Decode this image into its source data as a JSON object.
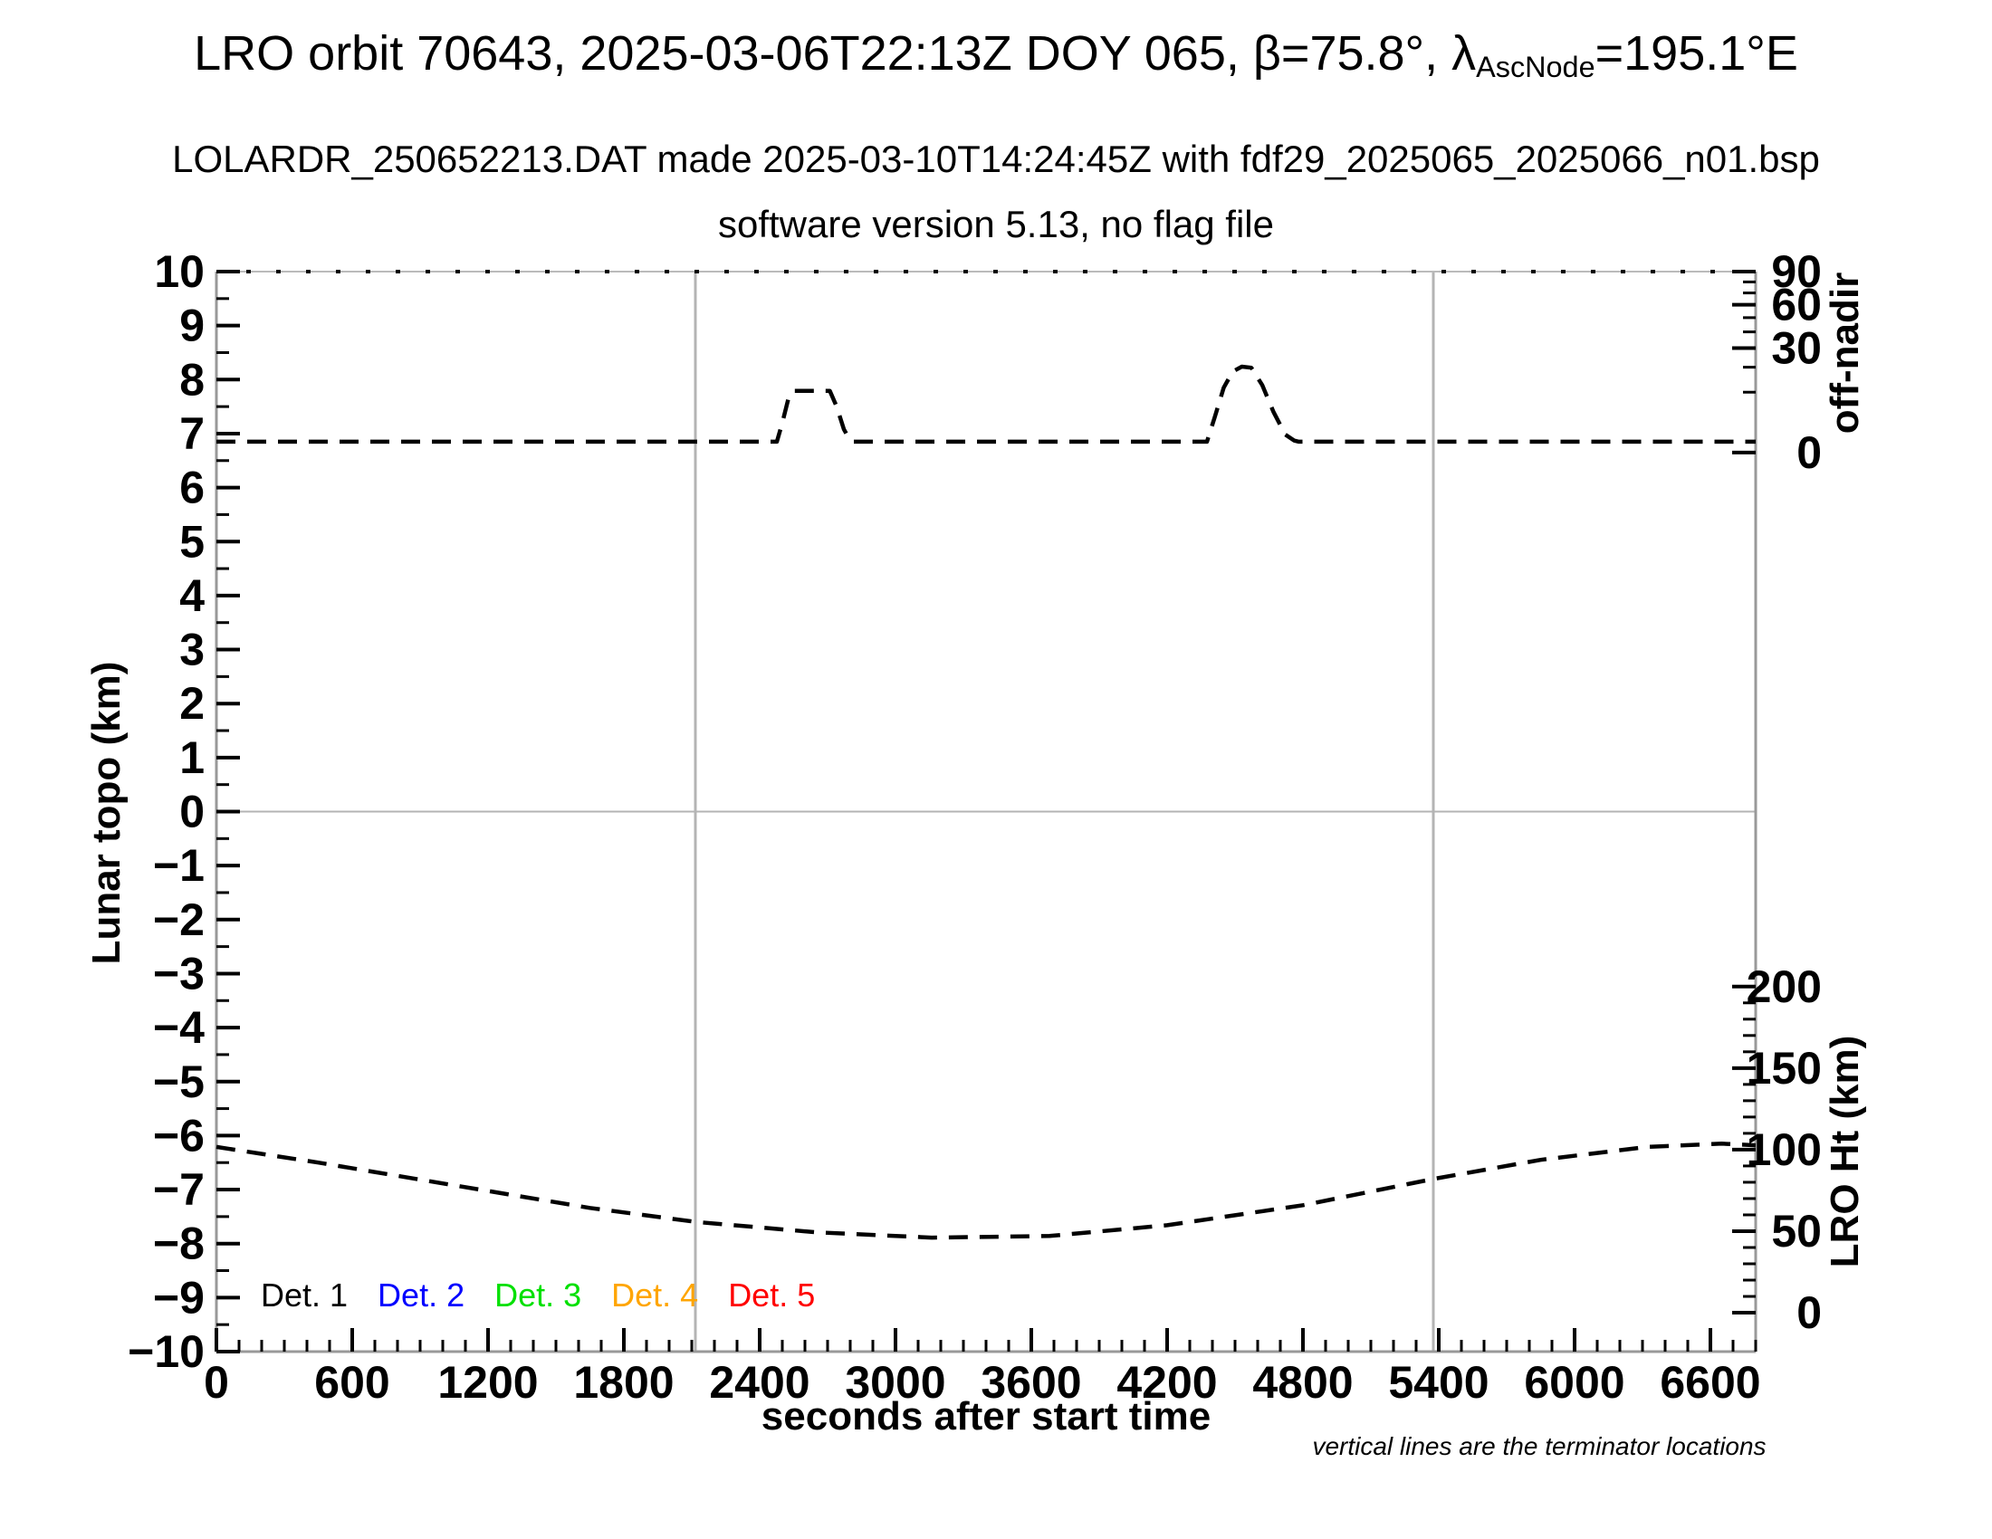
{
  "header": {
    "title_pre": "LRO orbit 70643, 2025-03-06T22:13Z DOY 065, β=75.8°, λ",
    "title_sub": "AscNode",
    "title_post": "=195.1°E",
    "subtitle": "LOLARDR_250652213.DAT made 2025-03-10T14:24:45Z with fdf29_2025065_2025066_n01.bsp",
    "subtitle2": "software version 5.13, no flag file"
  },
  "legend": {
    "items": [
      {
        "label": "Det. 1",
        "color": "#000000"
      },
      {
        "label": "Det. 2",
        "color": "#0000ff"
      },
      {
        "label": "Det. 3",
        "color": "#00e000"
      },
      {
        "label": "Det. 4",
        "color": "#ffa500"
      },
      {
        "label": "Det. 5",
        "color": "#ff0000"
      }
    ]
  },
  "footnote": "vertical lines are the terminator locations",
  "chart_data": {
    "type": "line",
    "x_axis": {
      "label": "seconds after start time",
      "min": 0,
      "max": 6800,
      "major_ticks": [
        0,
        600,
        1200,
        1800,
        2400,
        3000,
        3600,
        4200,
        4800,
        5400,
        6000,
        6600
      ],
      "major_tick_labels": [
        "0",
        "600",
        "1200",
        "1800",
        "2400",
        "3000",
        "3600",
        "4200",
        "4800",
        "5400",
        "6000",
        "6600"
      ],
      "minor_tick_step": 100
    },
    "y_left_axis": {
      "label": "Lunar topo (km)",
      "min": -10,
      "max": 10,
      "major_ticks": [
        10,
        9,
        8,
        7,
        6,
        5,
        4,
        3,
        2,
        1,
        0,
        -1,
        -2,
        -3,
        -4,
        -5,
        -6,
        -7,
        -8,
        -9,
        -10
      ],
      "major_tick_labels": [
        "10",
        "9",
        "8",
        "7",
        "6",
        "5",
        "4",
        "3",
        "2",
        "1",
        "0",
        "−1",
        "−2",
        "−3",
        "−4",
        "−5",
        "−6",
        "−7",
        "−8",
        "−9",
        "−10"
      ],
      "minor_tick_step": 0.5
    },
    "y_right_offnadir_axis": {
      "label": "off-nadir",
      "scale": "sqrt",
      "major_ticks": [
        90,
        60,
        30,
        0
      ],
      "major_tick_labels": [
        "90",
        "60",
        "30",
        "0"
      ],
      "minor_ticks": [
        10,
        20,
        40,
        50,
        70,
        80
      ],
      "zero_at_left_km": 6.65,
      "max90_at_left_km": 10
    },
    "y_right_height_axis": {
      "label": "LRO Ht (km)",
      "major_ticks": [
        200,
        150,
        100,
        50,
        0
      ],
      "major_tick_labels": [
        "200",
        "150",
        "100",
        "50",
        "0"
      ],
      "minor_tick_step": 10,
      "zero_at_left_km": -9.28,
      "left_km_per_unit": 0.0302
    },
    "zero_line_left_km": 0,
    "terminator_lines_s": [
      2116,
      5376
    ],
    "series": [
      {
        "name": "off-nadir angle track",
        "color": "#000000",
        "line_style": "dashed",
        "description": "flat near 0.3° off-nadir with slews to ≈11° around 2500–2800 s and ≈20° around 4400–4780 s (sqrt off-nadir scale); plotted at ≈6.85 on the left km scale",
        "points_s_km": [
          [
            0,
            6.85
          ],
          [
            2476,
            6.85
          ],
          [
            2500,
            7.2
          ],
          [
            2530,
            7.7
          ],
          [
            2552,
            7.79
          ],
          [
            2710,
            7.79
          ],
          [
            2740,
            7.5
          ],
          [
            2772,
            7.08
          ],
          [
            2796,
            6.9
          ],
          [
            2816,
            6.85
          ],
          [
            4376,
            6.85
          ],
          [
            4410,
            7.3
          ],
          [
            4450,
            7.85
          ],
          [
            4490,
            8.15
          ],
          [
            4530,
            8.24
          ],
          [
            4572,
            8.22
          ],
          [
            4620,
            7.9
          ],
          [
            4670,
            7.4
          ],
          [
            4722,
            6.98
          ],
          [
            4762,
            6.87
          ],
          [
            4782,
            6.85
          ],
          [
            6800,
            6.85
          ]
        ]
      },
      {
        "name": "LRO height track",
        "color": "#000000",
        "line_style": "dashed",
        "description": "LRO height ≈101 km at 0 s, minimum ≈46 km near 3200 s, rising to ≈103 km near 6650 s (right LRO Ht scale)",
        "points_s_km": [
          [
            0,
            -6.21
          ],
          [
            450,
            -6.5
          ],
          [
            1050,
            -6.92
          ],
          [
            1650,
            -7.34
          ],
          [
            2120,
            -7.6
          ],
          [
            2650,
            -7.79
          ],
          [
            3160,
            -7.89
          ],
          [
            3680,
            -7.86
          ],
          [
            4200,
            -7.66
          ],
          [
            4800,
            -7.29
          ],
          [
            5380,
            -6.8
          ],
          [
            5850,
            -6.45
          ],
          [
            6320,
            -6.21
          ],
          [
            6650,
            -6.15
          ],
          [
            6800,
            -6.18
          ]
        ]
      }
    ]
  }
}
